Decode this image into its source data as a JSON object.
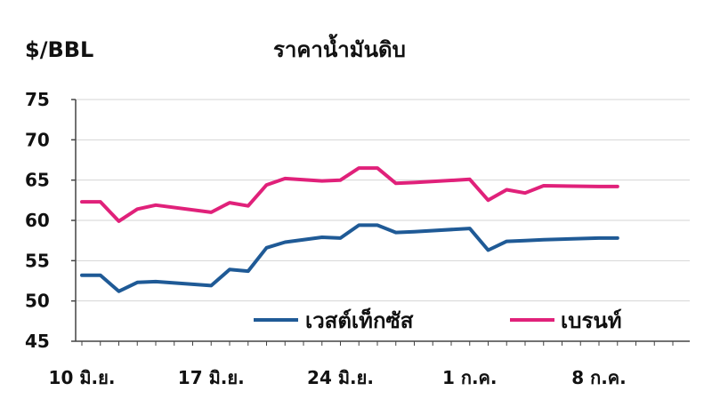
{
  "chart_data": {
    "type": "line",
    "title": "ราคาน้ำมันดิบ",
    "ylabel": "$/BBL",
    "xlabel": "",
    "ylim": [
      45,
      75
    ],
    "yticks": [
      "75",
      "70",
      "65",
      "60",
      "55",
      "50",
      "45"
    ],
    "xtick_labels": [
      "10 มิ.ย.",
      "17 มิ.ย.",
      "24 มิ.ย.",
      "1 ก.ค.",
      "8 ก.ค."
    ],
    "xtick_index": [
      0,
      7,
      14,
      21,
      28
    ],
    "grid": "horizontal",
    "legend_position": "bottom-right inside plot",
    "series": [
      {
        "name": "เวสต์เท็กซัส",
        "color": "#1f5a96",
        "x_index": [
          0,
          1,
          2,
          3,
          4,
          7,
          8,
          9,
          10,
          11,
          13,
          14,
          15,
          16,
          17,
          18,
          21,
          22,
          23,
          24,
          25,
          28,
          29
        ],
        "values": [
          53.2,
          53.2,
          51.2,
          52.3,
          52.4,
          51.9,
          53.9,
          53.7,
          56.6,
          57.3,
          57.9,
          57.8,
          59.4,
          59.4,
          58.5,
          58.6,
          59.0,
          56.3,
          57.4,
          57.5,
          57.6,
          57.8,
          57.8
        ]
      },
      {
        "name": "เบรนท์",
        "color": "#e0217a",
        "x_index": [
          0,
          1,
          2,
          3,
          4,
          7,
          8,
          9,
          10,
          11,
          13,
          14,
          15,
          16,
          17,
          18,
          21,
          22,
          23,
          24,
          25,
          28,
          29
        ],
        "values": [
          62.3,
          62.3,
          59.9,
          61.4,
          61.9,
          61.0,
          62.2,
          61.8,
          64.4,
          65.2,
          64.9,
          65.0,
          66.5,
          66.5,
          64.6,
          64.7,
          65.1,
          62.5,
          63.8,
          63.4,
          64.3,
          64.2,
          64.2
        ]
      }
    ]
  }
}
